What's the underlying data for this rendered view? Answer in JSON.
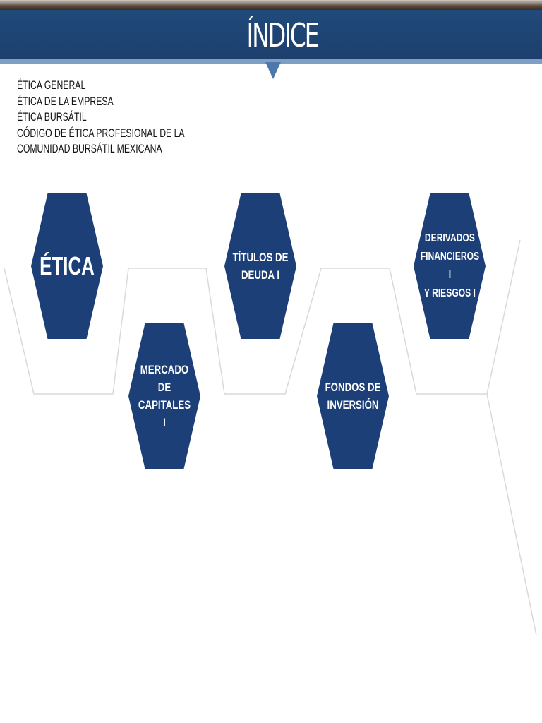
{
  "header": {
    "title": "ÍNDICE"
  },
  "index": {
    "items": [
      "ÉTICA GENERAL",
      "ÉTICA DE LA EMPRESA",
      "ÉTICA BURSÁTIL",
      "CÓDIGO DE ÉTICA PROFESIONAL DE LA",
      "COMUNIDAD BURSÁTIL MEXICANA"
    ]
  },
  "modules": [
    {
      "label": "ÉTICA"
    },
    {
      "label": "MERCADO DE\nCAPITALES I"
    },
    {
      "label": "TÍTULOS DE\nDEUDA  I"
    },
    {
      "label": "FONDOS DE\nINVERSIÓN"
    },
    {
      "label": "DERIVADOS\nFINANCIEROS I\nY RIESGOS I"
    }
  ],
  "colors": {
    "header": "#1d3f6d",
    "hexagon": "#1d3f77",
    "accent": "#7f9ec4",
    "path_line": "#d9d9d9"
  }
}
